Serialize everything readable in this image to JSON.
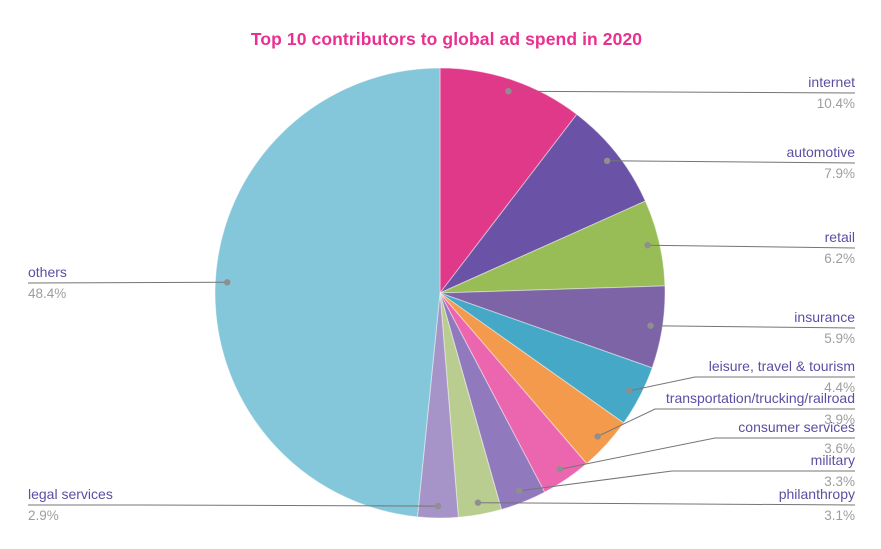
{
  "chart_data": {
    "type": "pie",
    "title": "Top 10 contributors to global ad spend in 2020",
    "title_color": "#E93090",
    "label_color": "#5C4EA2",
    "percent_color": "#9E9E9E",
    "leader_line_color": "#757575",
    "dot_color": "#8F8F8F",
    "legend_position": "outside-callout-labels",
    "start_at": "12-oclock-clockwise",
    "slices": [
      {
        "label": "internet",
        "value": 10.4,
        "pct_label": "10.4%",
        "color": "#E0398A"
      },
      {
        "label": "automotive",
        "value": 7.9,
        "pct_label": "7.9%",
        "color": "#6A53A6"
      },
      {
        "label": "retail",
        "value": 6.2,
        "pct_label": "6.2%",
        "color": "#98BD56"
      },
      {
        "label": "insurance",
        "value": 5.9,
        "pct_label": "5.9%",
        "color": "#7D64A6"
      },
      {
        "label": "leisure, travel & tourism",
        "value": 4.4,
        "pct_label": "4.4%",
        "color": "#44A8C6"
      },
      {
        "label": "transportation/trucking/railroad",
        "value": 3.9,
        "pct_label": "3.9%",
        "color": "#F49A4D"
      },
      {
        "label": "consumer services",
        "value": 3.6,
        "pct_label": "3.6%",
        "color": "#EB66AE"
      },
      {
        "label": "military",
        "value": 3.3,
        "pct_label": "3.3%",
        "color": "#9179BE"
      },
      {
        "label": "philanthropy",
        "value": 3.1,
        "pct_label": "3.1%",
        "color": "#BACD90"
      },
      {
        "label": "legal services",
        "value": 2.9,
        "pct_label": "2.9%",
        "color": "#A693C7"
      },
      {
        "label": "others",
        "value": 48.4,
        "pct_label": "48.4%",
        "color": "#84C6DA"
      }
    ]
  }
}
